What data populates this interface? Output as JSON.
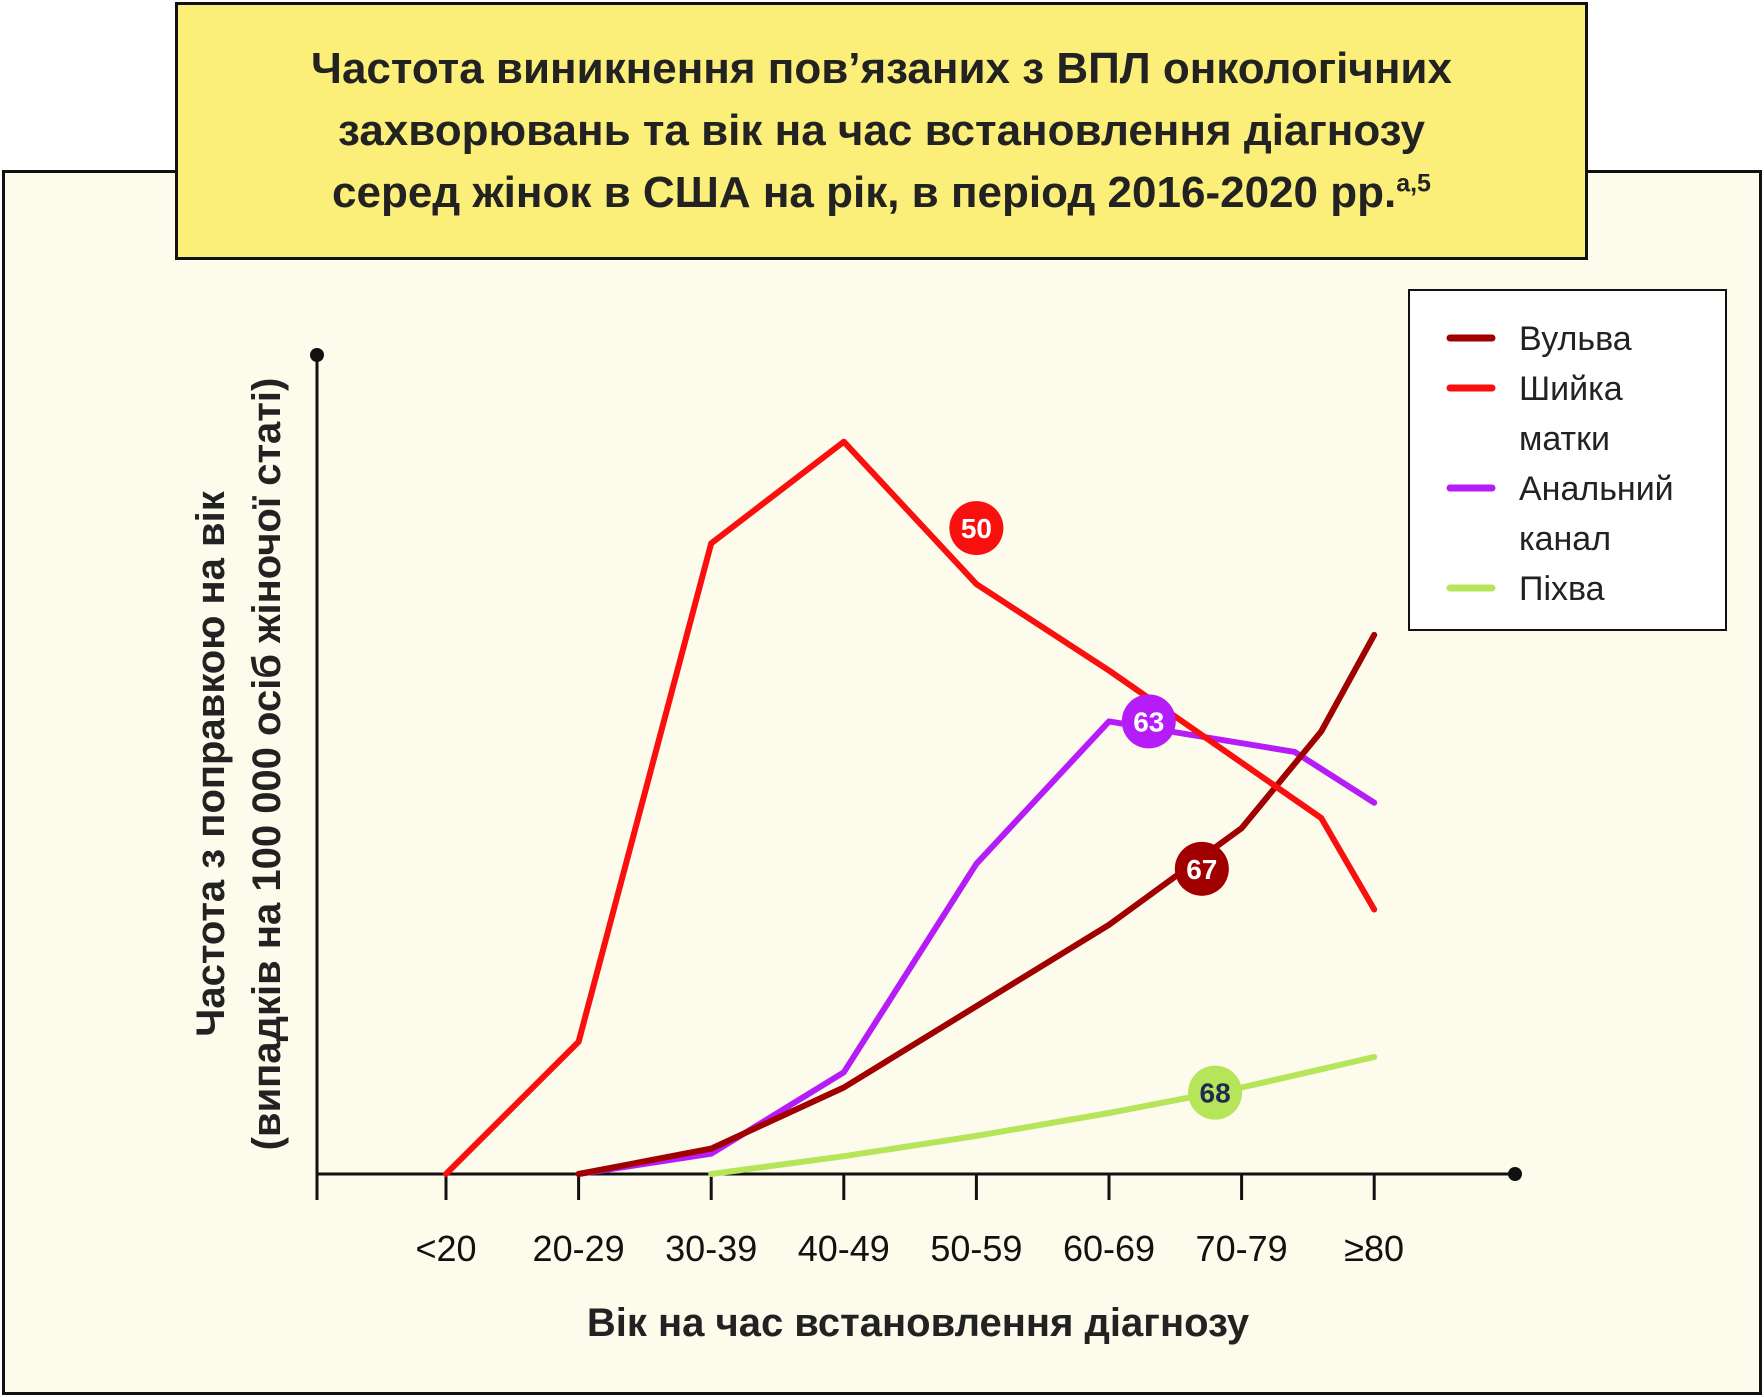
{
  "title": {
    "line1": "Частота виникнення пов’язаних з ВПЛ онкологічних",
    "line2": "захворювань та вік на час встановлення діагнозу",
    "line3": "серед жінок в США на рік, в період 2016-2020 рр.",
    "superscript": "a,5"
  },
  "chart_data": {
    "type": "line",
    "categories": [
      "<20",
      "20-29",
      "30-39",
      "40-49",
      "50-59",
      "60-69",
      "70-79",
      "≥80"
    ],
    "xlabel": "Вік на час встановлення діагнозу",
    "ylabel_line1": "Частота з поправкою на вік",
    "ylabel_line2": "(випадків на 100 000 осіб жіночої статі)",
    "ylim": [
      0,
      14
    ],
    "grid": false,
    "legend_position": "top-right",
    "series": [
      {
        "name": "Вульва",
        "name_lines": [
          "Вульва"
        ],
        "color": "#a00000",
        "x": [
          1,
          2,
          3,
          4,
          5,
          6,
          6.6,
          7
        ],
        "values": [
          0,
          0.5,
          1.7,
          3.3,
          4.9,
          6.8,
          8.7,
          10.6
        ],
        "badge": {
          "text": "67",
          "x": 5.7,
          "y": 6.0
        }
      },
      {
        "name": "Шийка матки",
        "name_lines": [
          "Шийка",
          "матки"
        ],
        "color": "#fa0f0f",
        "x": [
          0,
          1,
          2,
          3,
          4,
          5,
          6.6,
          7
        ],
        "values": [
          0,
          2.6,
          12.4,
          14.4,
          11.6,
          9.9,
          7.0,
          5.2
        ],
        "badge": {
          "text": "50",
          "x": 4.0,
          "y": 12.7
        }
      },
      {
        "name": "Анальний канал",
        "name_lines": [
          "Анальний",
          "канал"
        ],
        "color": "#b61cf7",
        "x": [
          1,
          2,
          3,
          4,
          5,
          6.4,
          7
        ],
        "values": [
          0,
          0.4,
          2.0,
          6.1,
          8.9,
          8.3,
          7.3
        ],
        "badge": {
          "text": "63",
          "x": 5.3,
          "y": 8.9
        }
      },
      {
        "name": "Піхва",
        "name_lines": [
          "Піхва"
        ],
        "color": "#b6e55a",
        "x": [
          2,
          3,
          4,
          5,
          6,
          6.5,
          7
        ],
        "values": [
          0,
          0.35,
          0.75,
          1.2,
          1.7,
          2.0,
          2.3
        ],
        "badge": {
          "text": "68",
          "x": 5.8,
          "y": 1.6
        }
      }
    ]
  }
}
